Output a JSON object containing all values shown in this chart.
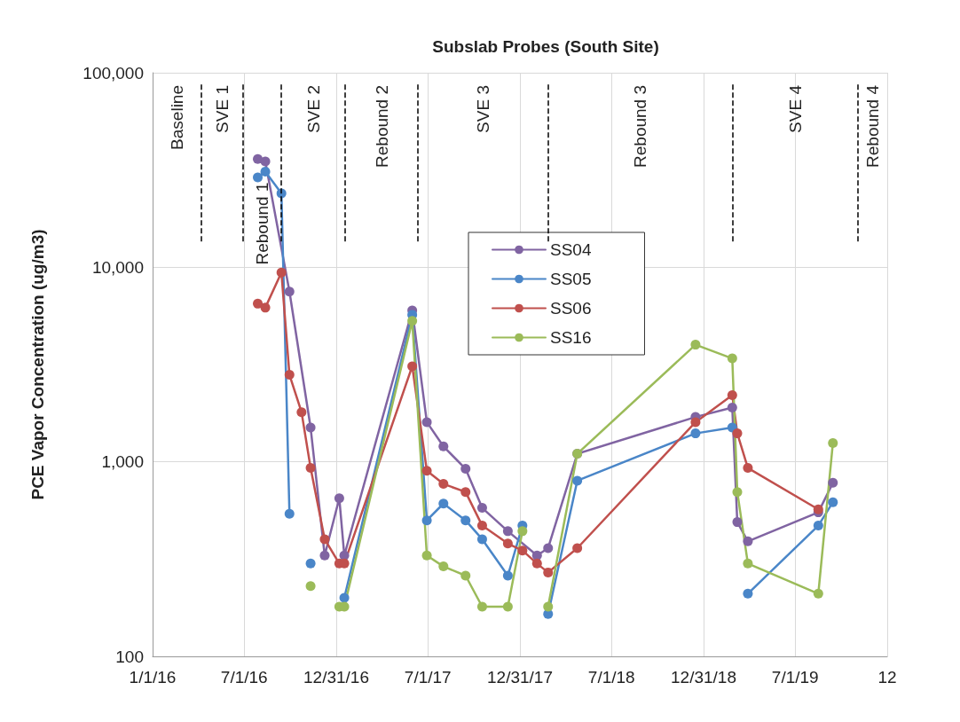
{
  "chart_data": {
    "type": "line",
    "title": "Subslab Probes (South Site)",
    "ylabel": "PCE Vapor Concentration (ug/m3)",
    "log": "y",
    "grid": true,
    "legend": "top center",
    "marker": "circle",
    "line_style": "solid",
    "xlim": [
      "2016-01-01",
      "2019-12-31"
    ],
    "xticks": [
      {
        "value": "2016-01-01",
        "label": "1/1/16"
      },
      {
        "value": "2016-07-01",
        "label": "7/1/16"
      },
      {
        "value": "2016-12-31",
        "label": "12/31/16"
      },
      {
        "value": "2017-07-01",
        "label": "7/1/17"
      },
      {
        "value": "2017-12-31",
        "label": "12/31/17"
      },
      {
        "value": "2018-07-01",
        "label": "7/1/18"
      },
      {
        "value": "2018-12-31",
        "label": "12/31/18"
      },
      {
        "value": "2019-07-01",
        "label": "7/1/19"
      },
      {
        "value": "2019-12-31",
        "label": "12"
      }
    ],
    "ylim": [
      100,
      100000
    ],
    "yticks": [
      100,
      {
        "value": 1000,
        "label": "1,000"
      },
      {
        "value": 10000,
        "label": "10,000"
      },
      {
        "value": 100000,
        "label": "100,000"
      }
    ],
    "series": [
      {
        "name": "SS04",
        "color": "#8064a2",
        "x": [
          "2016-07-28",
          "2016-08-12",
          "2016-09-29",
          "2016-11-10",
          "2016-12-08",
          "2017-01-06",
          "2017-01-16",
          "2017-05-31",
          "2017-06-29",
          "2017-08-01",
          "2017-09-14",
          "2017-10-17",
          "2017-12-07",
          "2018-02-03",
          "2018-02-25",
          "2018-04-24",
          "2018-12-15",
          "2019-02-26",
          "2019-03-08",
          "2019-03-29",
          "2019-08-16",
          "2019-09-14"
        ],
        "values": [
          36000,
          35000,
          7500,
          1500,
          330,
          650,
          330,
          6000,
          1600,
          1200,
          920,
          580,
          440,
          330,
          360,
          1100,
          1700,
          1900,
          490,
          390,
          550,
          780
        ]
      },
      {
        "name": "SS05",
        "color": "#4a86c8",
        "x": [
          "2016-07-28",
          "2016-08-12",
          "2016-09-13",
          "2016-09-29",
          "2016-10-23",
          "2016-11-10",
          "2016-12-08",
          "2017-01-16",
          "2017-05-31",
          "2017-06-29",
          "2017-08-01",
          "2017-09-14",
          "2017-10-17",
          "2017-12-07",
          "2018-01-05",
          "2018-02-03",
          "2018-02-25",
          "2018-04-24",
          "2018-12-15",
          "2019-02-26",
          "2019-03-08",
          "2019-03-29",
          "2019-08-16",
          "2019-09-14"
        ],
        "values": [
          29000,
          31000,
          24000,
          540,
          null,
          300,
          null,
          200,
          5700,
          500,
          610,
          500,
          400,
          260,
          470,
          null,
          165,
          800,
          1400,
          1500,
          null,
          210,
          470,
          620
        ]
      },
      {
        "name": "SS06",
        "color": "#c0504d",
        "x": [
          "2016-07-28",
          "2016-08-12",
          "2016-09-13",
          "2016-09-29",
          "2016-10-23",
          "2016-11-10",
          "2016-12-08",
          "2017-01-06",
          "2017-01-16",
          "2017-05-31",
          "2017-06-29",
          "2017-08-01",
          "2017-09-14",
          "2017-10-17",
          "2017-12-07",
          "2018-01-05",
          "2018-02-03",
          "2018-02-25",
          "2018-04-24",
          "2018-12-15",
          "2019-02-26",
          "2019-03-08",
          "2019-03-29",
          "2019-08-16"
        ],
        "values": [
          6500,
          6200,
          9400,
          2800,
          1800,
          930,
          400,
          300,
          300,
          3100,
          900,
          770,
          700,
          470,
          380,
          350,
          300,
          270,
          360,
          1600,
          2200,
          1400,
          930,
          570
        ]
      },
      {
        "name": "SS16",
        "color": "#9bbb59",
        "x": [
          "2016-11-10",
          "2016-12-08",
          "2017-01-06",
          "2017-01-16",
          "2017-05-31",
          "2017-06-29",
          "2017-08-01",
          "2017-09-14",
          "2017-10-17",
          "2017-12-07",
          "2018-01-05",
          "2018-02-03",
          "2018-02-25",
          "2018-04-24",
          "2018-12-15",
          "2019-02-26",
          "2019-03-08",
          "2019-03-29",
          "2019-08-16",
          "2019-09-14"
        ],
        "values": [
          230,
          null,
          180,
          180,
          5300,
          330,
          290,
          260,
          180,
          180,
          440,
          null,
          180,
          1100,
          4000,
          3400,
          700,
          300,
          210,
          1250
        ]
      }
    ],
    "ref_lines": [
      {
        "axis": "x",
        "value": "2016-04-07",
        "line_style": "dashed",
        "color": "#000000"
      },
      {
        "axis": "x",
        "value": "2016-06-28",
        "line_style": "dashed",
        "color": "#000000"
      },
      {
        "axis": "x",
        "value": "2016-09-13",
        "line_style": "dashed",
        "color": "#000000"
      },
      {
        "axis": "x",
        "value": "2017-01-18",
        "line_style": "dashed",
        "color": "#000000"
      },
      {
        "axis": "x",
        "value": "2017-06-11",
        "line_style": "dashed",
        "color": "#000000"
      },
      {
        "axis": "x",
        "value": "2018-02-25",
        "line_style": "dashed",
        "color": "#000000"
      },
      {
        "axis": "x",
        "value": "2019-02-26",
        "line_style": "dashed",
        "color": "#000000"
      },
      {
        "axis": "x",
        "value": "2019-11-03",
        "line_style": "dashed",
        "color": "#000000"
      }
    ],
    "annotations": [
      "Baseline",
      "SVE 1",
      "Rebound 1",
      "SVE 2",
      "Rebound 2",
      "SVE 3",
      "Rebound 3",
      "SVE 4",
      "Rebound 4"
    ]
  }
}
